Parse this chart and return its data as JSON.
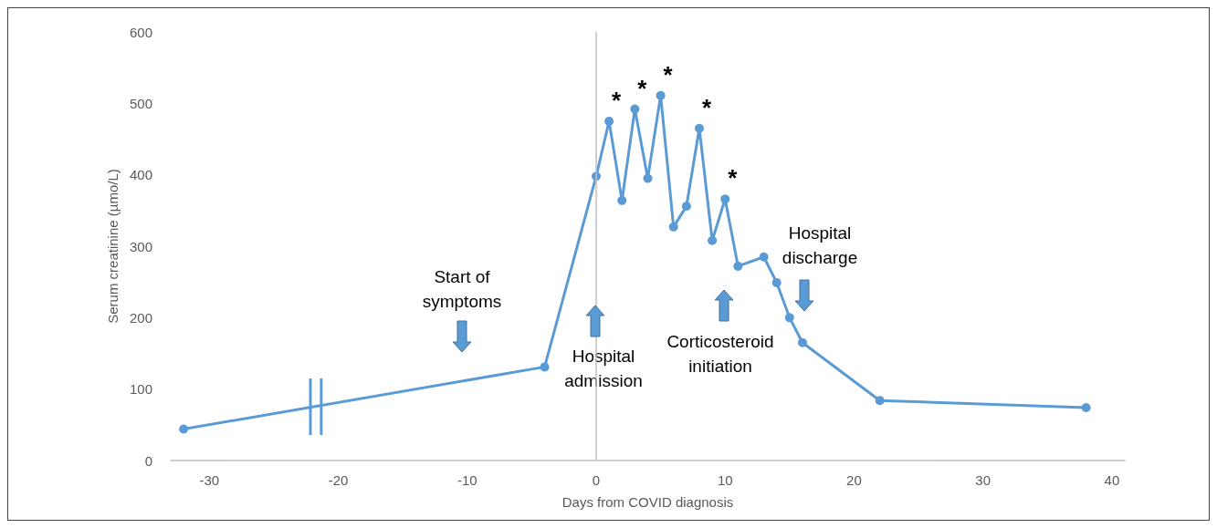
{
  "chart_data": {
    "type": "line",
    "xlabel": "Days from COVID diagnosis",
    "ylabel": "Serum creatinine (µmo/L)",
    "x": [
      -32,
      -4,
      0,
      1,
      2,
      3,
      4,
      5,
      6,
      7,
      8,
      9,
      10,
      11,
      13,
      14,
      15,
      16,
      22,
      38
    ],
    "series": [
      {
        "color": "#5b9bd5",
        "values": [
          44,
          131,
          398,
          475,
          364,
          492,
          395,
          511,
          327,
          356,
          465,
          308,
          366,
          272,
          285,
          249,
          200,
          165,
          84,
          74
        ]
      }
    ],
    "xlim": [
      -33,
      41
    ],
    "xticks": [
      -30,
      -20,
      -10,
      0,
      10,
      20,
      30,
      40
    ],
    "ylim": [
      0,
      600
    ],
    "yticks": [
      0,
      100,
      200,
      300,
      400,
      500,
      600
    ],
    "grid": false,
    "marker": "circle",
    "line_style": "solid",
    "ref_lines": [
      {
        "axis": "x",
        "value": 0,
        "color": "#bfbfbf"
      }
    ],
    "annotations": [
      {
        "text": "*",
        "x": 1,
        "y": 475
      },
      {
        "text": "*",
        "x": 3,
        "y": 492
      },
      {
        "text": "*",
        "x": 5,
        "y": 511
      },
      {
        "text": "*",
        "x": 8,
        "y": 465
      },
      {
        "text": "*",
        "x": 10,
        "y": 366
      },
      "Start of\nsymptoms",
      "Hospital\nadmission",
      "Corticosteroid\ninitiation",
      "Hospital\ndischarge"
    ]
  }
}
